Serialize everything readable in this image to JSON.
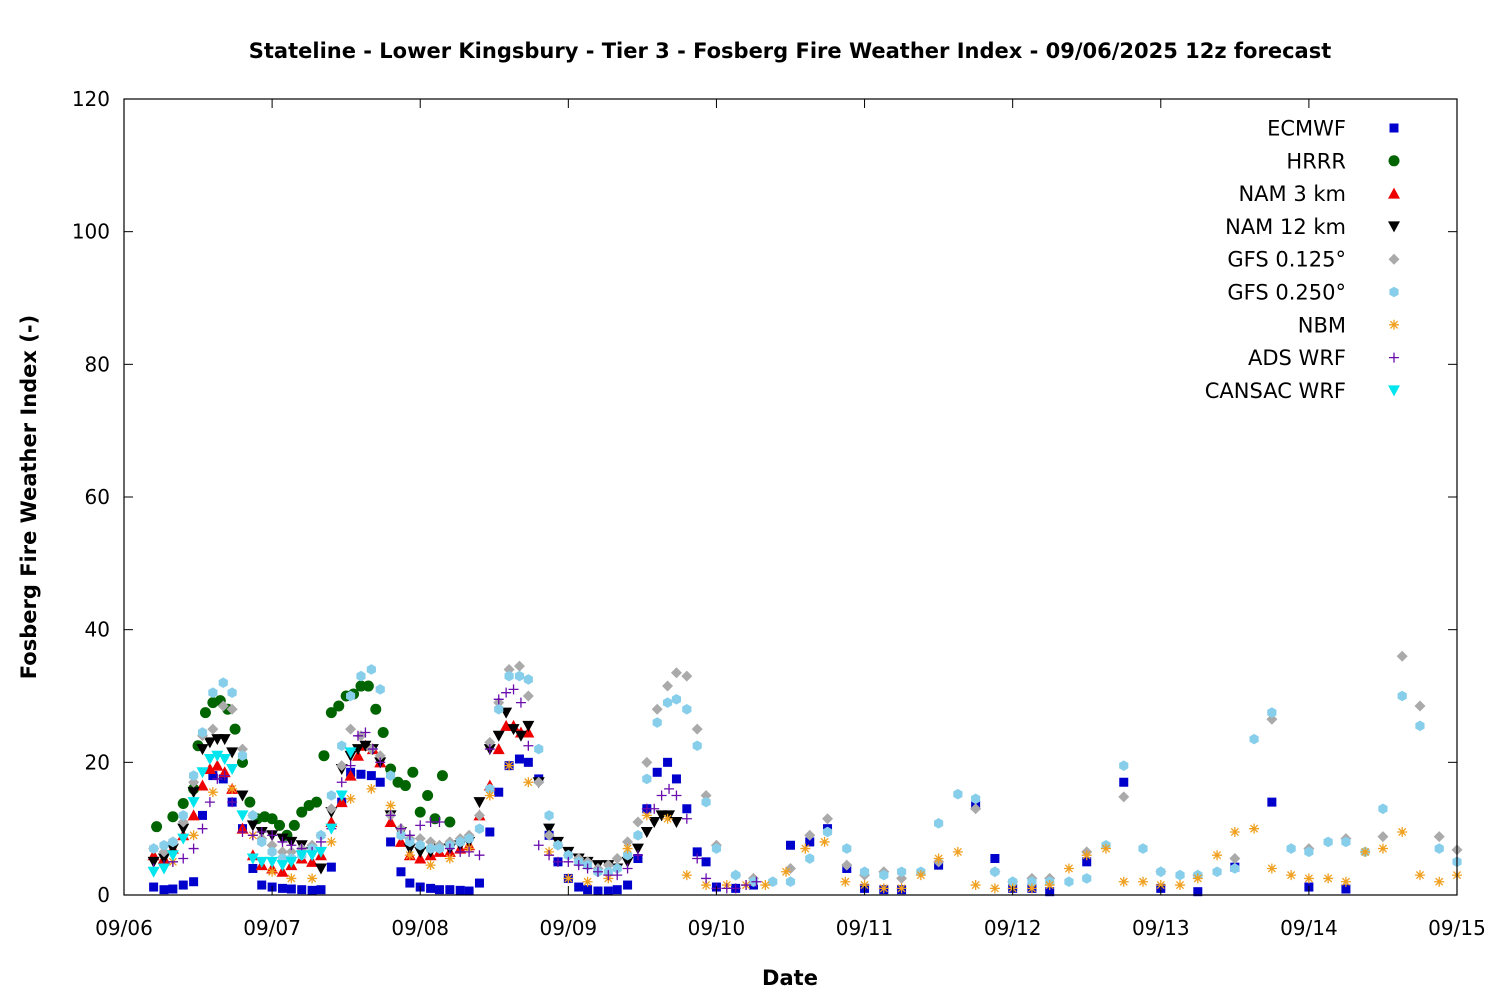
{
  "chart_data": {
    "type": "scatter",
    "title": "Stateline - Lower Kingsbury - Tier 3 - Fosberg Fire Weather Index - 09/06/2025 12z forecast",
    "xlabel": "Date",
    "ylabel": "Fosberg Fire Weather Index (-)",
    "x_unit": "days after 09/06 00z",
    "xlim": [
      0,
      9
    ],
    "ylim": [
      0,
      120
    ],
    "x_ticks": [
      {
        "value": 0,
        "label": "09/06"
      },
      {
        "value": 1,
        "label": "09/07"
      },
      {
        "value": 2,
        "label": "09/08"
      },
      {
        "value": 3,
        "label": "09/09"
      },
      {
        "value": 4,
        "label": "09/10"
      },
      {
        "value": 5,
        "label": "09/11"
      },
      {
        "value": 6,
        "label": "09/12"
      },
      {
        "value": 7,
        "label": "09/13"
      },
      {
        "value": 8,
        "label": "09/14"
      },
      {
        "value": 9,
        "label": "09/15"
      }
    ],
    "y_ticks": [
      0,
      20,
      40,
      60,
      80,
      100,
      120
    ],
    "grid": false,
    "legend_position": "top-right",
    "series": [
      {
        "name": "ECMWF",
        "marker": "square",
        "color": "#0000cc",
        "x": [
          0.2,
          0.27,
          0.33,
          0.4,
          0.47,
          0.53,
          0.6,
          0.67,
          0.73,
          0.8,
          0.87,
          0.93,
          1.0,
          1.07,
          1.13,
          1.2,
          1.27,
          1.33,
          1.4,
          1.47,
          1.53,
          1.6,
          1.67,
          1.73,
          1.8,
          1.87,
          1.93,
          2.0,
          2.07,
          2.13,
          2.2,
          2.27,
          2.33,
          2.4,
          2.47,
          2.53,
          2.6,
          2.67,
          2.73,
          2.8,
          2.87,
          2.93,
          3.0,
          3.07,
          3.13,
          3.2,
          3.27,
          3.33,
          3.4,
          3.47,
          3.53,
          3.6,
          3.67,
          3.73,
          3.8,
          3.87,
          3.93,
          4.0,
          4.13,
          4.25,
          4.5,
          4.63,
          4.75,
          4.88,
          5.0,
          5.13,
          5.25,
          5.5,
          5.75,
          5.88,
          6.0,
          6.13,
          6.25,
          6.5,
          6.75,
          7.0,
          7.25,
          7.5,
          7.75,
          8.0,
          8.25
        ],
        "y": [
          1.2,
          0.8,
          0.9,
          1.5,
          2.0,
          12.0,
          18.0,
          17.5,
          14.0,
          10.0,
          4.0,
          1.5,
          1.2,
          1.0,
          0.9,
          0.8,
          0.7,
          0.8,
          4.2,
          14.0,
          18.5,
          18.2,
          18.0,
          17.0,
          8.0,
          3.5,
          1.8,
          1.2,
          1.0,
          0.8,
          0.8,
          0.7,
          0.6,
          1.8,
          9.5,
          15.5,
          19.5,
          20.5,
          20.0,
          17.5,
          9.0,
          5.0,
          2.5,
          1.2,
          0.8,
          0.6,
          0.6,
          0.8,
          1.5,
          5.5,
          13.0,
          18.5,
          20.0,
          17.5,
          13.0,
          6.5,
          5.0,
          1.2,
          1.0,
          1.5,
          7.5,
          8.0,
          10.0,
          4.0,
          1.0,
          0.8,
          0.8,
          4.5,
          13.5,
          5.5,
          1.0,
          1.0,
          0.5,
          5.0,
          17.0,
          1.0,
          0.5,
          4.2,
          14.0,
          1.2,
          0.9
        ]
      },
      {
        "name": "HRRR",
        "marker": "circle",
        "color": "#006400",
        "x": [
          0.22,
          0.33,
          0.4,
          0.47,
          0.5,
          0.55,
          0.6,
          0.65,
          0.7,
          0.75,
          0.8,
          0.85,
          0.9,
          0.95,
          1.0,
          1.05,
          1.1,
          1.15,
          1.2,
          1.25,
          1.3,
          1.35,
          1.4,
          1.45,
          1.5,
          1.55,
          1.6,
          1.65,
          1.7,
          1.75,
          1.8,
          1.85,
          1.9,
          1.95,
          2.0,
          2.05,
          2.1,
          2.15,
          2.2
        ],
        "y": [
          10.3,
          11.8,
          13.8,
          16.0,
          22.5,
          27.5,
          29.0,
          29.3,
          28.0,
          25.0,
          20.0,
          14.0,
          11.5,
          11.8,
          11.5,
          10.5,
          9.0,
          10.5,
          12.5,
          13.5,
          14.0,
          21.0,
          27.5,
          28.5,
          30.0,
          30.3,
          31.5,
          31.5,
          28.0,
          24.5,
          19.0,
          17.0,
          16.5,
          18.5,
          12.5,
          15.0,
          11.5,
          18.0,
          11.0
        ]
      },
      {
        "name": "NAM 3 km",
        "marker": "triangle-up",
        "color": "#ee0000",
        "x": [
          0.2,
          0.27,
          0.33,
          0.4,
          0.47,
          0.53,
          0.58,
          0.63,
          0.68,
          0.73,
          0.8,
          0.87,
          0.93,
          1.0,
          1.07,
          1.13,
          1.2,
          1.27,
          1.33,
          1.4,
          1.47,
          1.53,
          1.58,
          1.63,
          1.68,
          1.73,
          1.8,
          1.87,
          1.93,
          2.0,
          2.07,
          2.13,
          2.2,
          2.27,
          2.33,
          2.4,
          2.47,
          2.53,
          2.58,
          2.63,
          2.68,
          2.73
        ],
        "y": [
          6.0,
          5.5,
          7.0,
          9.0,
          12.0,
          16.5,
          19.0,
          19.5,
          18.5,
          16.0,
          10.0,
          6.0,
          4.5,
          4.0,
          3.5,
          4.5,
          5.5,
          5.0,
          6.0,
          11.0,
          14.0,
          18.0,
          21.0,
          22.5,
          22.0,
          20.0,
          11.0,
          8.0,
          6.0,
          5.5,
          6.0,
          6.5,
          6.5,
          7.0,
          7.5,
          12.0,
          16.5,
          22.0,
          25.5,
          25.5,
          24.5,
          24.5
        ]
      },
      {
        "name": "NAM 12 km",
        "marker": "triangle-down",
        "color": "#000000",
        "x": [
          0.2,
          0.27,
          0.33,
          0.4,
          0.47,
          0.53,
          0.58,
          0.63,
          0.68,
          0.73,
          0.8,
          0.87,
          0.93,
          1.0,
          1.07,
          1.13,
          1.2,
          1.27,
          1.33,
          1.4,
          1.47,
          1.53,
          1.58,
          1.63,
          1.68,
          1.73,
          1.8,
          1.87,
          1.93,
          2.0,
          2.07,
          2.13,
          2.2,
          2.27,
          2.33,
          2.4,
          2.47,
          2.53,
          2.58,
          2.63,
          2.68,
          2.73,
          2.8,
          2.87,
          2.93,
          3.0,
          3.07,
          3.13,
          3.2,
          3.27,
          3.33,
          3.4,
          3.47,
          3.53,
          3.58,
          3.63,
          3.68,
          3.73
        ],
        "y": [
          5.0,
          5.5,
          7.0,
          10.0,
          15.5,
          22.0,
          23.0,
          23.5,
          23.5,
          21.5,
          15.0,
          10.5,
          9.5,
          9.0,
          8.5,
          8.0,
          7.5,
          6.5,
          4.0,
          12.5,
          19.0,
          21.0,
          22.0,
          22.5,
          22.0,
          20.0,
          12.0,
          9.5,
          7.0,
          6.5,
          6.5,
          7.0,
          7.0,
          7.5,
          8.0,
          14.0,
          22.0,
          24.0,
          27.5,
          25.0,
          24.0,
          25.5,
          17.0,
          10.0,
          8.0,
          6.5,
          5.5,
          5.0,
          4.5,
          4.5,
          4.0,
          5.0,
          7.0,
          9.5,
          11.0,
          12.0,
          12.0,
          11.0
        ]
      },
      {
        "name": "GFS 0.125°",
        "marker": "diamond",
        "color": "#aaaaaa",
        "x": [
          0.2,
          0.27,
          0.33,
          0.4,
          0.47,
          0.53,
          0.6,
          0.67,
          0.73,
          0.8,
          0.87,
          0.93,
          1.0,
          1.07,
          1.13,
          1.2,
          1.27,
          1.33,
          1.4,
          1.47,
          1.53,
          1.6,
          1.67,
          1.73,
          1.8,
          1.87,
          1.93,
          2.0,
          2.07,
          2.13,
          2.2,
          2.27,
          2.33,
          2.4,
          2.47,
          2.53,
          2.6,
          2.67,
          2.73,
          2.8,
          2.87,
          2.93,
          3.0,
          3.07,
          3.13,
          3.2,
          3.27,
          3.33,
          3.4,
          3.47,
          3.53,
          3.6,
          3.67,
          3.73,
          3.8,
          3.87,
          3.93,
          4.0,
          4.13,
          4.25,
          4.5,
          4.63,
          4.75,
          4.88,
          5.0,
          5.13,
          5.25,
          5.5,
          5.75,
          5.88,
          6.0,
          6.13,
          6.25,
          6.5,
          6.75,
          7.0,
          7.25,
          7.5,
          7.75,
          8.0,
          8.25,
          8.5,
          8.63,
          8.75,
          8.88,
          9.0
        ],
        "y": [
          7.0,
          6.5,
          8.0,
          11.0,
          17.0,
          24.0,
          25.0,
          28.5,
          28.0,
          22.0,
          12.0,
          8.5,
          7.5,
          6.5,
          6.5,
          7.0,
          7.5,
          9.0,
          13.0,
          19.5,
          25.0,
          24.0,
          22.0,
          21.0,
          12.0,
          10.0,
          8.5,
          8.5,
          8.0,
          7.5,
          8.0,
          8.5,
          9.0,
          12.0,
          23.0,
          29.0,
          34.0,
          34.5,
          30.0,
          17.0,
          9.0,
          7.5,
          6.0,
          5.5,
          5.0,
          4.0,
          4.5,
          5.5,
          8.0,
          11.0,
          20.0,
          28.0,
          31.5,
          33.5,
          33.0,
          25.0,
          15.0,
          7.5,
          3.0,
          2.5,
          4.0,
          9.0,
          11.5,
          4.5,
          3.0,
          3.5,
          2.5,
          5.0,
          13.0,
          3.5,
          2.0,
          2.5,
          2.5,
          6.5,
          14.8,
          3.5,
          3.0,
          5.5,
          26.5,
          7.0,
          8.5,
          8.8,
          36.0,
          28.5,
          8.8,
          6.8
        ]
      },
      {
        "name": "GFS 0.250°",
        "marker": "hexagon",
        "color": "#87ceeb",
        "x": [
          0.2,
          0.27,
          0.33,
          0.4,
          0.47,
          0.53,
          0.6,
          0.67,
          0.73,
          0.8,
          0.87,
          0.93,
          1.0,
          1.07,
          1.13,
          1.2,
          1.27,
          1.33,
          1.4,
          1.47,
          1.53,
          1.6,
          1.67,
          1.73,
          1.8,
          1.87,
          1.93,
          2.0,
          2.07,
          2.13,
          2.2,
          2.27,
          2.33,
          2.4,
          2.47,
          2.53,
          2.6,
          2.67,
          2.73,
          2.8,
          2.87,
          2.93,
          3.0,
          3.07,
          3.13,
          3.2,
          3.27,
          3.33,
          3.4,
          3.47,
          3.53,
          3.6,
          3.67,
          3.73,
          3.8,
          3.87,
          3.93,
          4.0,
          4.13,
          4.25,
          4.38,
          4.5,
          4.63,
          4.75,
          4.88,
          5.0,
          5.13,
          5.25,
          5.38,
          5.5,
          5.63,
          5.75,
          5.88,
          6.0,
          6.13,
          6.25,
          6.38,
          6.5,
          6.63,
          6.75,
          6.88,
          7.0,
          7.13,
          7.25,
          7.38,
          7.5,
          7.63,
          7.75,
          7.88,
          8.0,
          8.13,
          8.25,
          8.38,
          8.5,
          8.63,
          8.75,
          8.88,
          9.0
        ],
        "y": [
          7.0,
          7.5,
          8.0,
          12.0,
          18.0,
          24.5,
          30.5,
          32.0,
          30.5,
          21.0,
          12.0,
          8.0,
          6.5,
          5.5,
          5.5,
          6.0,
          7.0,
          9.0,
          15.0,
          22.5,
          30.0,
          33.0,
          34.0,
          31.0,
          18.0,
          9.0,
          8.0,
          7.5,
          7.0,
          7.0,
          7.5,
          8.0,
          8.5,
          10.0,
          16.0,
          28.0,
          33.0,
          33.0,
          32.5,
          22.0,
          12.0,
          7.5,
          6.0,
          5.0,
          4.5,
          3.5,
          3.5,
          4.0,
          6.0,
          9.0,
          17.5,
          26.0,
          29.0,
          29.5,
          28.0,
          22.5,
          14.0,
          7.0,
          3.0,
          2.0,
          2.0,
          2.0,
          5.5,
          9.5,
          7.0,
          3.5,
          3.0,
          3.5,
          3.5,
          10.8,
          15.2,
          14.5,
          3.5,
          2.0,
          2.0,
          2.0,
          2.0,
          2.5,
          7.5,
          19.5,
          7.0,
          3.5,
          3.0,
          3.0,
          3.5,
          4.0,
          23.5,
          27.5,
          7.0,
          6.5,
          8.0,
          8.0,
          6.5,
          13.0,
          30.0,
          25.5,
          7.0,
          5.0
        ]
      },
      {
        "name": "NBM",
        "marker": "asterisk",
        "color": "#f0a020",
        "x": [
          0.33,
          0.47,
          0.6,
          0.73,
          0.87,
          1.0,
          1.13,
          1.27,
          1.4,
          1.53,
          1.67,
          1.8,
          1.93,
          2.07,
          2.2,
          2.33,
          2.47,
          2.6,
          2.73,
          2.87,
          3.0,
          3.13,
          3.27,
          3.4,
          3.53,
          3.67,
          3.8,
          3.93,
          4.07,
          4.2,
          4.33,
          4.47,
          4.6,
          4.73,
          4.87,
          5.0,
          5.13,
          5.25,
          5.38,
          5.5,
          5.63,
          5.75,
          5.88,
          6.0,
          6.13,
          6.25,
          6.38,
          6.5,
          6.63,
          6.75,
          6.88,
          7.0,
          7.13,
          7.25,
          7.38,
          7.5,
          7.63,
          7.75,
          7.88,
          8.0,
          8.13,
          8.25,
          8.38,
          8.5,
          8.63,
          8.75,
          8.88,
          9.0
        ],
        "y": [
          5.0,
          9.0,
          15.5,
          16.0,
          9.0,
          3.5,
          2.5,
          2.5,
          8.0,
          14.5,
          16.0,
          13.5,
          6.0,
          4.5,
          5.5,
          7.0,
          15.0,
          19.5,
          17.0,
          6.5,
          2.5,
          2.0,
          2.5,
          7.0,
          12.0,
          11.5,
          3.0,
          1.5,
          1.5,
          1.5,
          1.5,
          3.5,
          7.0,
          8.0,
          2.0,
          1.5,
          1.0,
          1.0,
          3.0,
          5.5,
          6.5,
          1.5,
          1.0,
          1.0,
          1.0,
          1.5,
          4.0,
          6.0,
          7.0,
          2.0,
          2.0,
          1.5,
          1.5,
          2.5,
          6.0,
          9.5,
          10.0,
          4.0,
          3.0,
          2.5,
          2.5,
          2.0,
          6.5,
          7.0,
          9.5,
          3.0,
          2.0,
          3.0
        ]
      },
      {
        "name": "ADS WRF",
        "marker": "plus",
        "color": "#6a0dad",
        "x": [
          0.2,
          0.27,
          0.33,
          0.4,
          0.47,
          0.53,
          0.58,
          0.63,
          0.68,
          0.73,
          0.8,
          0.87,
          0.93,
          1.0,
          1.07,
          1.13,
          1.2,
          1.27,
          1.33,
          1.4,
          1.47,
          1.53,
          1.58,
          1.63,
          1.68,
          1.73,
          1.8,
          1.87,
          1.93,
          2.0,
          2.07,
          2.13,
          2.2,
          2.27,
          2.33,
          2.4,
          2.47,
          2.53,
          2.58,
          2.63,
          2.68,
          2.73,
          2.8,
          2.87,
          2.93,
          3.0,
          3.07,
          3.13,
          3.2,
          3.27,
          3.33,
          3.4,
          3.47,
          3.53,
          3.58,
          3.63,
          3.68,
          3.73,
          3.8,
          3.87,
          3.93,
          4.0,
          4.07,
          4.13,
          4.2,
          4.27
        ],
        "y": [
          4.0,
          4.5,
          5.0,
          5.5,
          7.0,
          10.0,
          14.0,
          17.5,
          18.0,
          14.0,
          9.5,
          9.0,
          9.5,
          9.0,
          8.0,
          7.5,
          7.0,
          6.5,
          8.0,
          10.0,
          17.0,
          19.5,
          24.0,
          24.5,
          22.0,
          20.0,
          12.0,
          10.0,
          9.0,
          10.5,
          11.0,
          11.0,
          7.0,
          6.5,
          6.5,
          6.0,
          22.0,
          29.5,
          30.5,
          31.0,
          29.0,
          22.5,
          7.5,
          6.0,
          5.0,
          5.0,
          4.5,
          4.0,
          3.5,
          3.0,
          3.0,
          4.0,
          6.0,
          13.0,
          13.0,
          15.0,
          16.0,
          15.0,
          11.5,
          5.5,
          2.5,
          1.0,
          1.0,
          1.0,
          1.5,
          2.0
        ]
      },
      {
        "name": "CANSAC WRF",
        "marker": "triangle-down",
        "color": "#00e5ee",
        "x": [
          0.2,
          0.27,
          0.33,
          0.4,
          0.47,
          0.53,
          0.58,
          0.63,
          0.68,
          0.73,
          0.8,
          0.87,
          0.93,
          1.0,
          1.07,
          1.13,
          1.2,
          1.27,
          1.33,
          1.4,
          1.47,
          1.53
        ],
        "y": [
          3.5,
          4.0,
          6.0,
          8.5,
          14.0,
          18.5,
          20.5,
          21.0,
          20.5,
          19.0,
          12.0,
          5.5,
          5.0,
          5.0,
          4.5,
          5.0,
          6.0,
          6.0,
          6.5,
          10.0,
          15.0,
          21.5
        ]
      }
    ]
  }
}
